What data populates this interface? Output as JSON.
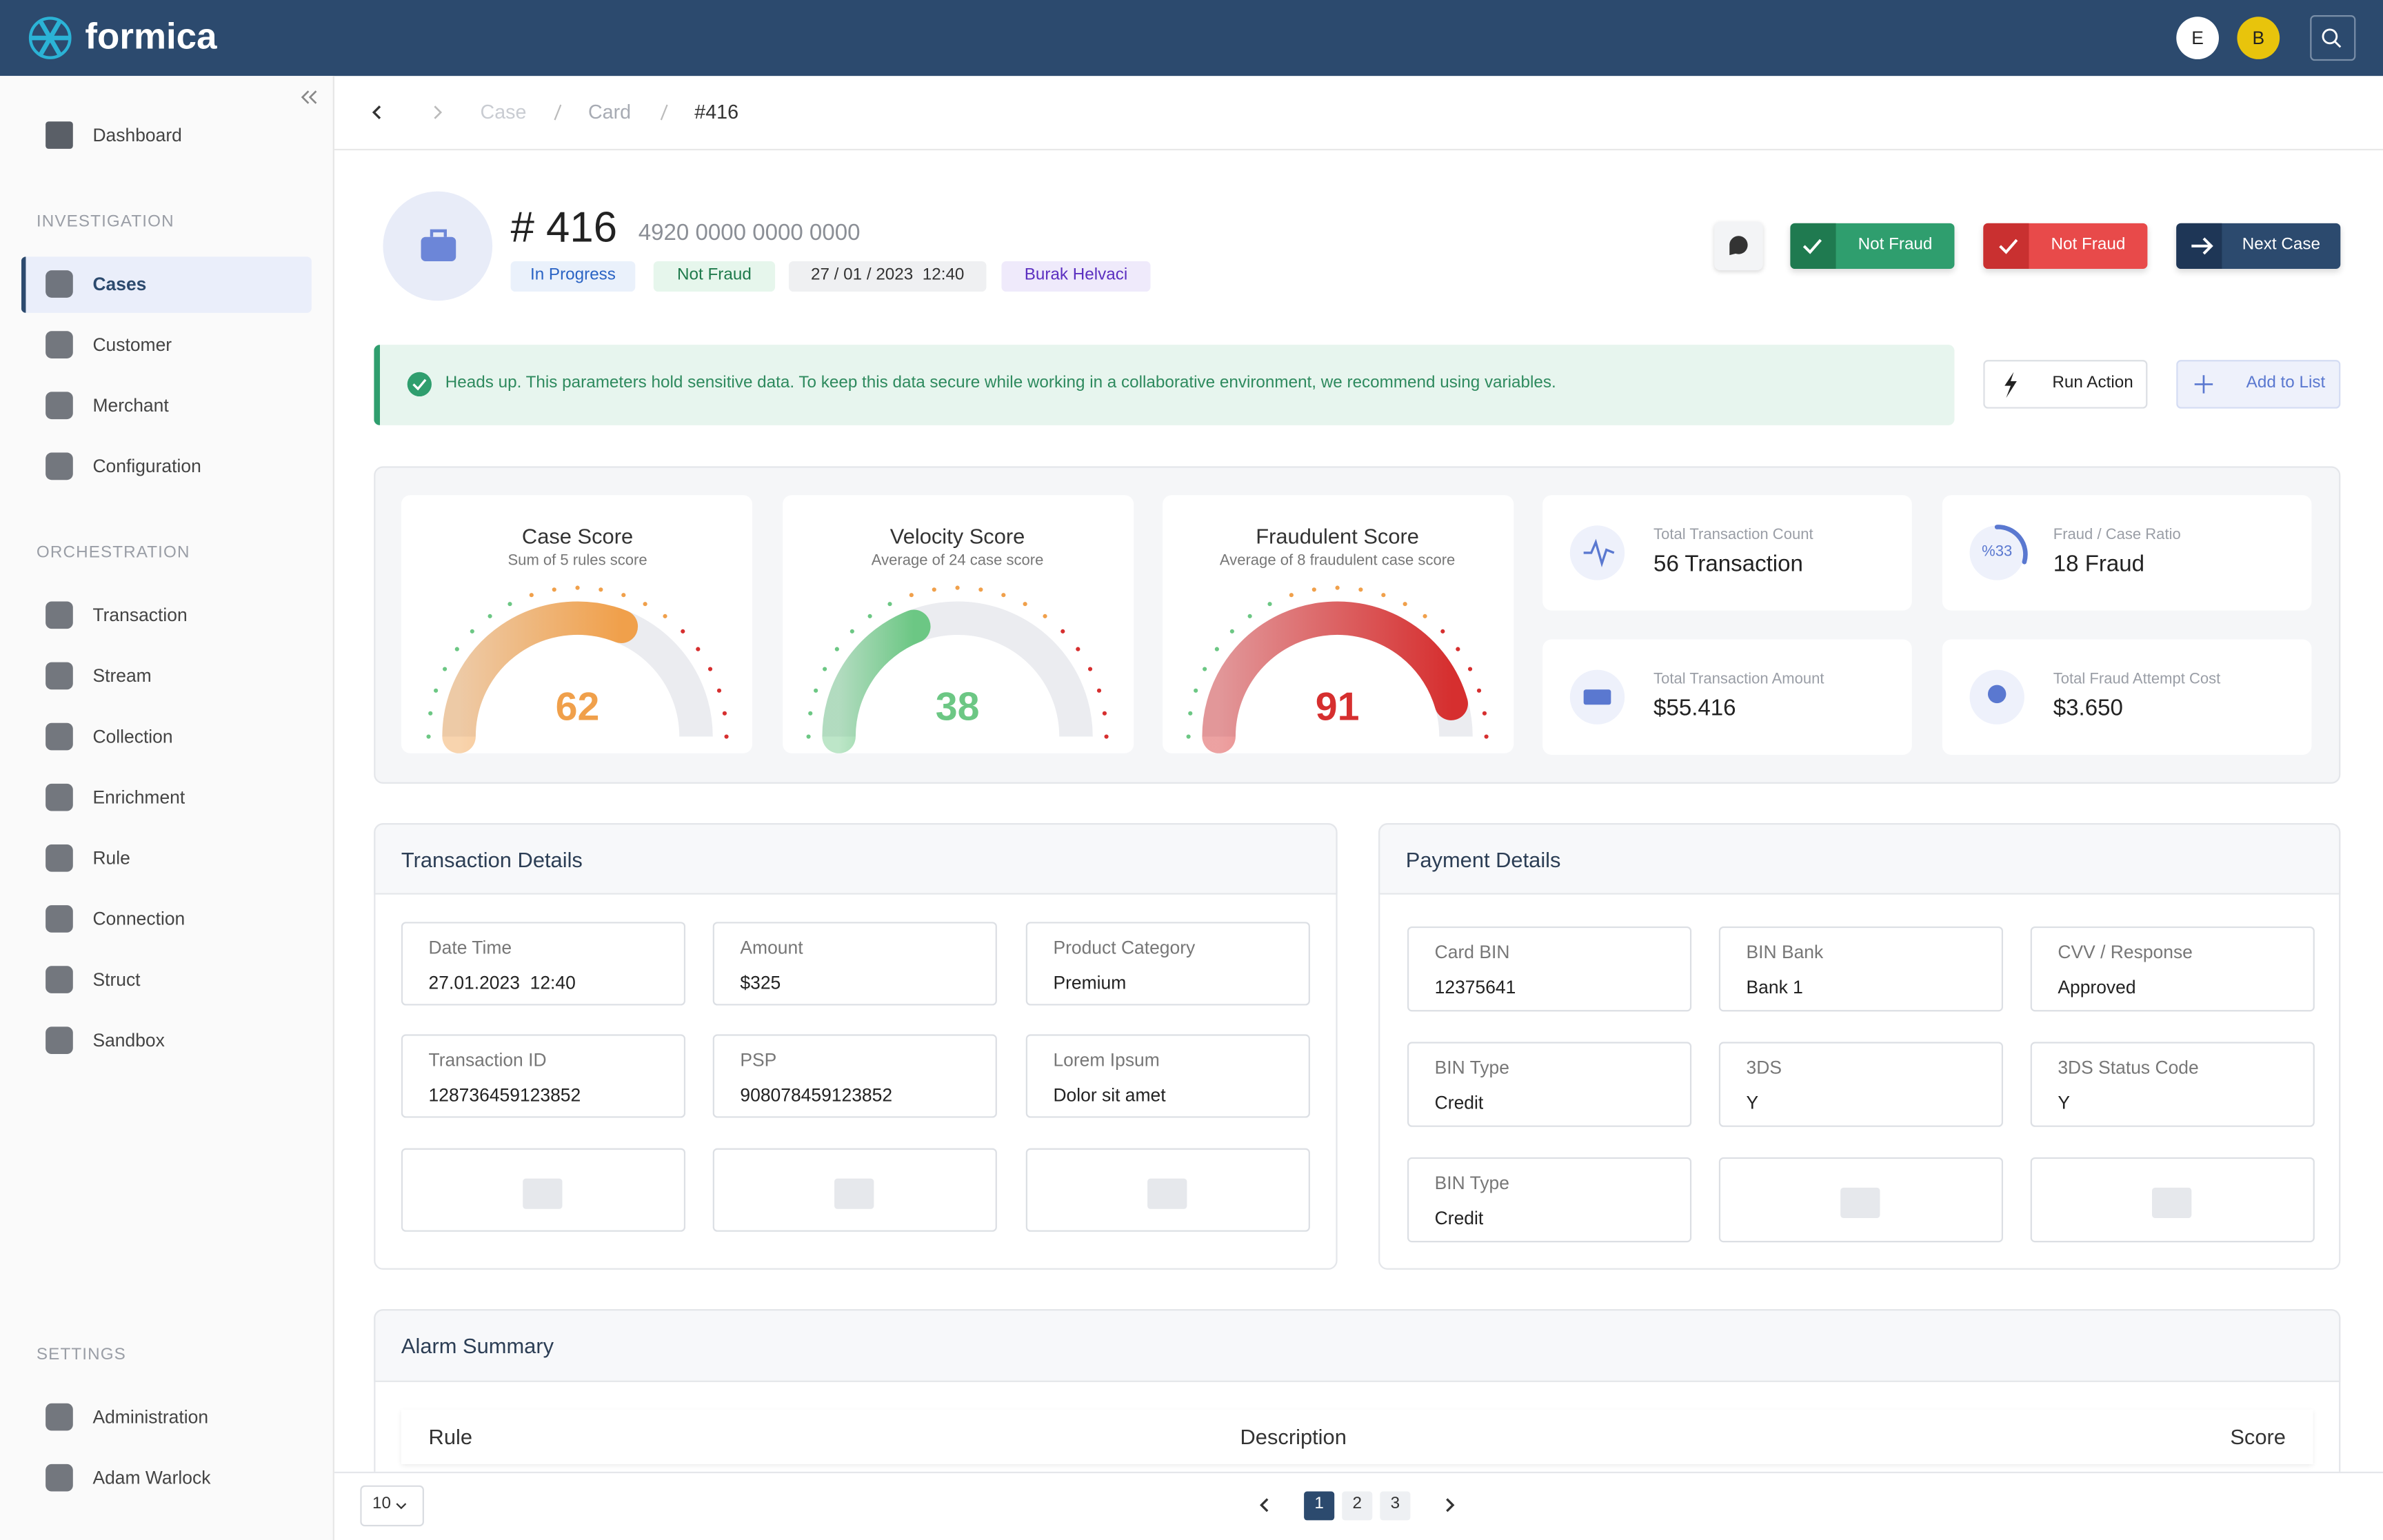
{
  "header": {
    "logo": "formica",
    "avatars": [
      "E",
      "B"
    ]
  },
  "breadcrumb": [
    "Case",
    "Card",
    "#416"
  ],
  "sidebar": {
    "top": "Dashboard",
    "groups": [
      {
        "title": "INVESTIGATION",
        "items": [
          "Cases",
          "Customer",
          "Merchant",
          "Configuration"
        ]
      },
      {
        "title": "ORCHESTRATION",
        "items": [
          "Transaction",
          "Stream",
          "Collection",
          "Enrichment",
          "Rule",
          "Connection",
          "Struct",
          "Sandbox"
        ]
      },
      {
        "title": "SETTINGS",
        "items": [
          "Administration",
          "Adam Warlock"
        ]
      }
    ]
  },
  "case": {
    "title": "# 416",
    "card": "4920 0000 0000 0000",
    "tags": [
      "In Progress",
      "Not Fraud",
      "27 / 01 / 2023  12:40",
      "Burak Helvaci"
    ],
    "actions": [
      "Not Fraud",
      "Not Fraud",
      "Next Case"
    ]
  },
  "alert": "Heads up. This parameters hold sensitive data. To keep this data secure while working in a collaborative environment, we recommend using variables.",
  "tools": [
    "Run Action",
    "Add to List"
  ],
  "gauges": [
    {
      "title": "Case Score",
      "subtitle": "Sum of 5 rules score",
      "value": 62,
      "color": "#f0a04b"
    },
    {
      "title": "Velocity Score",
      "subtitle": "Average of 24 case score",
      "value": 38,
      "color": "#6cc784"
    },
    {
      "title": "Fraudulent Score",
      "subtitle": "Average of 8 fraudulent case score",
      "value": 91,
      "color": "#d62f2f"
    }
  ],
  "stats": [
    {
      "label": "Total Transaction Count",
      "value": "56 Transaction"
    },
    {
      "label": "Fraud / Case Ratio",
      "badge": "%33",
      "value": "18 Fraud"
    },
    {
      "label": "Total Transaction Amount",
      "value": "$55.416"
    },
    {
      "label": "Total Fraud Attempt Cost",
      "value": "$3.650"
    }
  ],
  "transaction_details": {
    "title": "Transaction Details",
    "fields": [
      {
        "label": "Date Time",
        "value": "27.01.2023  12:40"
      },
      {
        "label": "Amount",
        "value": "$325"
      },
      {
        "label": "Product Category",
        "value": "Premium"
      },
      {
        "label": "Transaction ID",
        "value": "128736459123852"
      },
      {
        "label": "PSP",
        "value": "908078459123852"
      },
      {
        "label": "Lorem Ipsum",
        "value": "Dolor sit amet"
      }
    ]
  },
  "payment_details": {
    "title": "Payment Details",
    "fields": [
      {
        "label": "Card BIN",
        "value": "12375641"
      },
      {
        "label": "BIN Bank",
        "value": "Bank 1"
      },
      {
        "label": "CVV / Response",
        "value": "Approved"
      },
      {
        "label": "BIN Type",
        "value": "Credit"
      },
      {
        "label": "3DS",
        "value": "Y"
      },
      {
        "label": "3DS Status Code",
        "value": "Y"
      },
      {
        "label": "BIN Type",
        "value": "Credit"
      }
    ]
  },
  "alarm_summary": {
    "title": "Alarm Summary",
    "columns": [
      "Rule",
      "Description",
      "Score"
    ]
  },
  "pagination": {
    "page_size": "10",
    "pages": [
      "1",
      "2",
      "3"
    ]
  }
}
